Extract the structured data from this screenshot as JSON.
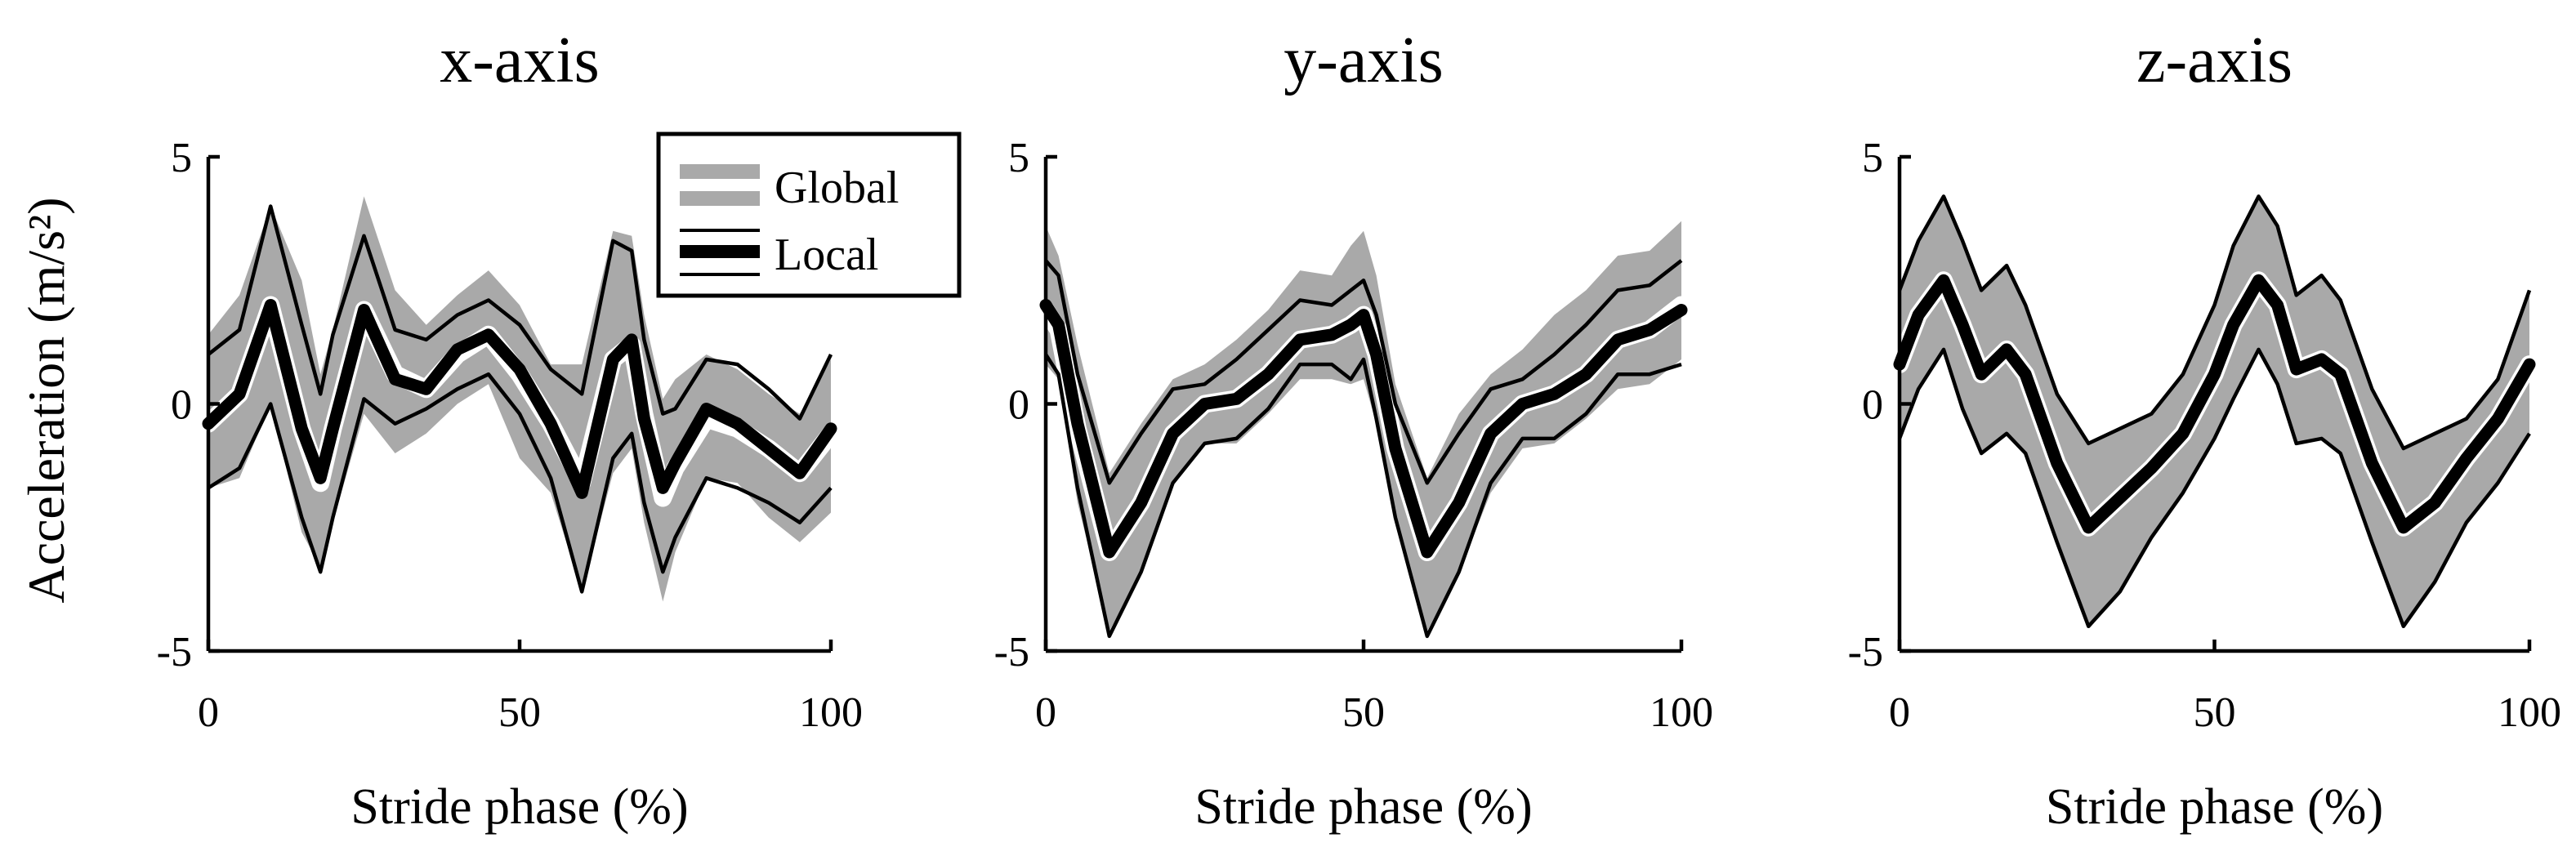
{
  "figure": {
    "ylabel": "Acceleration  (m/s²)",
    "legend": {
      "placement": "top-right of first panel",
      "items": [
        {
          "label": "Global",
          "style": "gray-band",
          "color": "#a9a9a9"
        },
        {
          "label": "Local",
          "style": "black-mean-with-thin-bounds",
          "color": "#000000"
        }
      ]
    }
  },
  "chart_data": [
    {
      "type": "line",
      "title": "x-axis",
      "xlabel": "Stride phase (%)",
      "ylabel": "Acceleration  (m/s²)",
      "xlim": [
        0,
        100
      ],
      "ylim": [
        -5,
        5
      ],
      "xticks": [
        "0",
        "50",
        "100"
      ],
      "yticks": [
        "5",
        "0",
        "-5"
      ],
      "grid": false,
      "series": [
        {
          "name": "Global",
          "style": "band",
          "color": "#a9a9a9",
          "x": [
            0,
            5,
            10,
            15,
            18,
            20,
            25,
            30,
            35,
            40,
            45,
            50,
            55,
            60,
            65,
            68,
            70,
            73,
            75,
            80,
            85,
            90,
            95,
            100
          ],
          "mean": [
            -0.4,
            0.2,
            2.0,
            -0.5,
            -1.6,
            -0.5,
            1.9,
            0.6,
            0.3,
            1.0,
            1.4,
            0.6,
            -0.4,
            -1.6,
            0.9,
            1.2,
            -0.2,
            -1.9,
            -1.3,
            -0.3,
            -0.5,
            -0.9,
            -1.4,
            -0.6
          ],
          "upper": [
            1.4,
            2.2,
            4.0,
            2.5,
            0.6,
            1.5,
            4.2,
            2.3,
            1.6,
            2.2,
            2.7,
            2.0,
            0.8,
            0.8,
            3.5,
            3.4,
            1.8,
            0.1,
            0.5,
            1.0,
            0.7,
            0.2,
            -0.2,
            0.9
          ],
          "lower": [
            -1.7,
            -1.5,
            0.0,
            -2.6,
            -3.3,
            -2.4,
            -0.2,
            -1.0,
            -0.6,
            0.0,
            0.4,
            -1.1,
            -1.8,
            -3.8,
            -1.4,
            -0.9,
            -2.4,
            -4.0,
            -3.0,
            -1.5,
            -1.6,
            -2.3,
            -2.8,
            -2.2
          ]
        },
        {
          "name": "Local",
          "style": "mean-with-bounds",
          "color": "#000000",
          "x": [
            0,
            5,
            10,
            15,
            18,
            20,
            25,
            30,
            35,
            40,
            45,
            50,
            55,
            60,
            65,
            68,
            70,
            73,
            75,
            80,
            85,
            90,
            95,
            100
          ],
          "mean": [
            -0.4,
            0.2,
            2.0,
            -0.5,
            -1.5,
            -0.5,
            1.9,
            0.5,
            0.3,
            1.1,
            1.4,
            0.7,
            -0.4,
            -1.8,
            0.9,
            1.3,
            -0.3,
            -1.7,
            -1.2,
            -0.1,
            -0.4,
            -0.9,
            -1.4,
            -0.5
          ],
          "upper": [
            1.0,
            1.5,
            4.0,
            1.6,
            0.2,
            1.4,
            3.4,
            1.5,
            1.3,
            1.8,
            2.1,
            1.6,
            0.7,
            0.2,
            3.3,
            3.1,
            1.3,
            -0.2,
            -0.1,
            0.9,
            0.8,
            0.3,
            -0.3,
            1.0
          ],
          "lower": [
            -1.7,
            -1.3,
            0.0,
            -2.3,
            -3.4,
            -2.3,
            0.1,
            -0.4,
            -0.1,
            0.3,
            0.6,
            -0.2,
            -1.5,
            -3.8,
            -1.1,
            -0.6,
            -2.0,
            -3.4,
            -2.7,
            -1.5,
            -1.7,
            -2.0,
            -2.4,
            -1.7
          ]
        }
      ]
    },
    {
      "type": "line",
      "title": "y-axis",
      "xlabel": "Stride phase (%)",
      "ylabel": "Acceleration  (m/s²)",
      "xlim": [
        0,
        100
      ],
      "ylim": [
        -5,
        5
      ],
      "xticks": [
        "0",
        "50",
        "100"
      ],
      "yticks": [
        "5",
        "0",
        "-5"
      ],
      "grid": false,
      "series": [
        {
          "name": "Global",
          "style": "band",
          "color": "#a9a9a9",
          "x": [
            0,
            2,
            5,
            10,
            15,
            20,
            25,
            30,
            35,
            40,
            45,
            48,
            50,
            52,
            55,
            60,
            65,
            70,
            75,
            80,
            85,
            90,
            95,
            100
          ],
          "mean": [
            1.9,
            1.5,
            -0.5,
            -3.0,
            -2.0,
            -0.6,
            0.0,
            0.1,
            0.6,
            1.3,
            1.4,
            1.6,
            1.8,
            1.0,
            -0.9,
            -3.0,
            -2.0,
            -0.6,
            0.0,
            0.2,
            0.6,
            1.3,
            1.5,
            2.0
          ],
          "upper": [
            3.6,
            3.0,
            1.2,
            -1.4,
            -0.4,
            0.5,
            0.8,
            1.3,
            1.9,
            2.7,
            2.6,
            3.2,
            3.5,
            2.6,
            0.4,
            -1.5,
            -0.2,
            0.6,
            1.1,
            1.8,
            2.3,
            3.0,
            3.1,
            3.7
          ],
          "lower": [
            0.8,
            0.5,
            -2.0,
            -4.6,
            -3.4,
            -1.6,
            -0.8,
            -0.8,
            -0.2,
            0.5,
            0.5,
            0.4,
            0.5,
            -0.4,
            -2.3,
            -4.6,
            -3.4,
            -1.8,
            -0.9,
            -0.8,
            -0.3,
            0.3,
            0.4,
            0.9
          ]
        },
        {
          "name": "Local",
          "style": "mean-with-bounds",
          "color": "#000000",
          "x": [
            0,
            2,
            5,
            10,
            15,
            20,
            25,
            30,
            35,
            40,
            45,
            48,
            50,
            52,
            55,
            60,
            65,
            70,
            75,
            80,
            85,
            90,
            95,
            100
          ],
          "mean": [
            2.0,
            1.6,
            -0.4,
            -3.0,
            -2.0,
            -0.6,
            0.0,
            0.1,
            0.6,
            1.3,
            1.4,
            1.6,
            1.8,
            1.0,
            -0.9,
            -3.0,
            -2.0,
            -0.6,
            0.0,
            0.2,
            0.6,
            1.3,
            1.5,
            1.9
          ],
          "upper": [
            2.9,
            2.6,
            0.6,
            -1.6,
            -0.6,
            0.3,
            0.4,
            0.9,
            1.5,
            2.1,
            2.0,
            2.3,
            2.5,
            1.8,
            0.0,
            -1.6,
            -0.6,
            0.3,
            0.5,
            1.0,
            1.6,
            2.3,
            2.4,
            2.9
          ],
          "lower": [
            1.0,
            0.6,
            -1.7,
            -4.7,
            -3.4,
            -1.6,
            -0.8,
            -0.7,
            -0.1,
            0.8,
            0.8,
            0.5,
            0.9,
            -0.3,
            -2.3,
            -4.7,
            -3.4,
            -1.6,
            -0.7,
            -0.7,
            -0.2,
            0.6,
            0.6,
            0.8
          ]
        }
      ]
    },
    {
      "type": "line",
      "title": "z-axis",
      "xlabel": "Stride phase (%)",
      "ylabel": "Acceleration  (m/s²)",
      "xlim": [
        0,
        100
      ],
      "ylim": [
        -5,
        5
      ],
      "xticks": [
        "0",
        "50",
        "100"
      ],
      "yticks": [
        "5",
        "0",
        "-5"
      ],
      "grid": false,
      "series": [
        {
          "name": "Global",
          "style": "band",
          "color": "#a9a9a9",
          "x": [
            0,
            3,
            7,
            10,
            13,
            17,
            20,
            25,
            30,
            35,
            40,
            45,
            50,
            53,
            57,
            60,
            63,
            67,
            70,
            75,
            80,
            85,
            90,
            95,
            100
          ],
          "mean": [
            0.8,
            1.8,
            2.5,
            1.6,
            0.6,
            1.1,
            0.6,
            -1.2,
            -2.5,
            -1.9,
            -1.3,
            -0.6,
            0.6,
            1.6,
            2.5,
            2.0,
            0.7,
            0.9,
            0.6,
            -1.2,
            -2.5,
            -2.0,
            -1.1,
            -0.3,
            0.8
          ],
          "upper": [
            2.3,
            3.3,
            4.2,
            3.3,
            2.3,
            2.8,
            2.0,
            0.2,
            -0.8,
            -0.5,
            -0.2,
            0.6,
            2.0,
            3.2,
            4.2,
            3.6,
            2.2,
            2.6,
            2.1,
            0.3,
            -0.9,
            -0.6,
            -0.3,
            0.5,
            2.3
          ],
          "lower": [
            -0.7,
            0.3,
            1.1,
            -0.1,
            -1.0,
            -0.6,
            -1.0,
            -2.8,
            -4.5,
            -3.8,
            -2.7,
            -1.8,
            -0.7,
            0.1,
            1.1,
            0.4,
            -0.8,
            -0.7,
            -1.0,
            -2.8,
            -4.5,
            -3.6,
            -2.4,
            -1.6,
            -0.6
          ]
        },
        {
          "name": "Local",
          "style": "mean-with-bounds",
          "color": "#000000",
          "x": [
            0,
            3,
            7,
            10,
            13,
            17,
            20,
            25,
            30,
            35,
            40,
            45,
            50,
            53,
            57,
            60,
            63,
            67,
            70,
            75,
            80,
            85,
            90,
            95,
            100
          ],
          "mean": [
            0.8,
            1.8,
            2.5,
            1.6,
            0.6,
            1.1,
            0.6,
            -1.2,
            -2.5,
            -1.9,
            -1.3,
            -0.6,
            0.6,
            1.6,
            2.5,
            2.0,
            0.7,
            0.9,
            0.6,
            -1.2,
            -2.5,
            -2.0,
            -1.1,
            -0.3,
            0.8
          ],
          "upper": [
            2.3,
            3.3,
            4.2,
            3.3,
            2.3,
            2.8,
            2.0,
            0.2,
            -0.8,
            -0.5,
            -0.2,
            0.6,
            2.0,
            3.2,
            4.2,
            3.6,
            2.2,
            2.6,
            2.1,
            0.3,
            -0.9,
            -0.6,
            -0.3,
            0.5,
            2.3
          ],
          "lower": [
            -0.7,
            0.3,
            1.1,
            -0.1,
            -1.0,
            -0.6,
            -1.0,
            -2.8,
            -4.5,
            -3.8,
            -2.7,
            -1.8,
            -0.7,
            0.1,
            1.1,
            0.4,
            -0.8,
            -0.7,
            -1.0,
            -2.8,
            -4.5,
            -3.6,
            -2.4,
            -1.6,
            -0.6
          ]
        }
      ]
    }
  ]
}
